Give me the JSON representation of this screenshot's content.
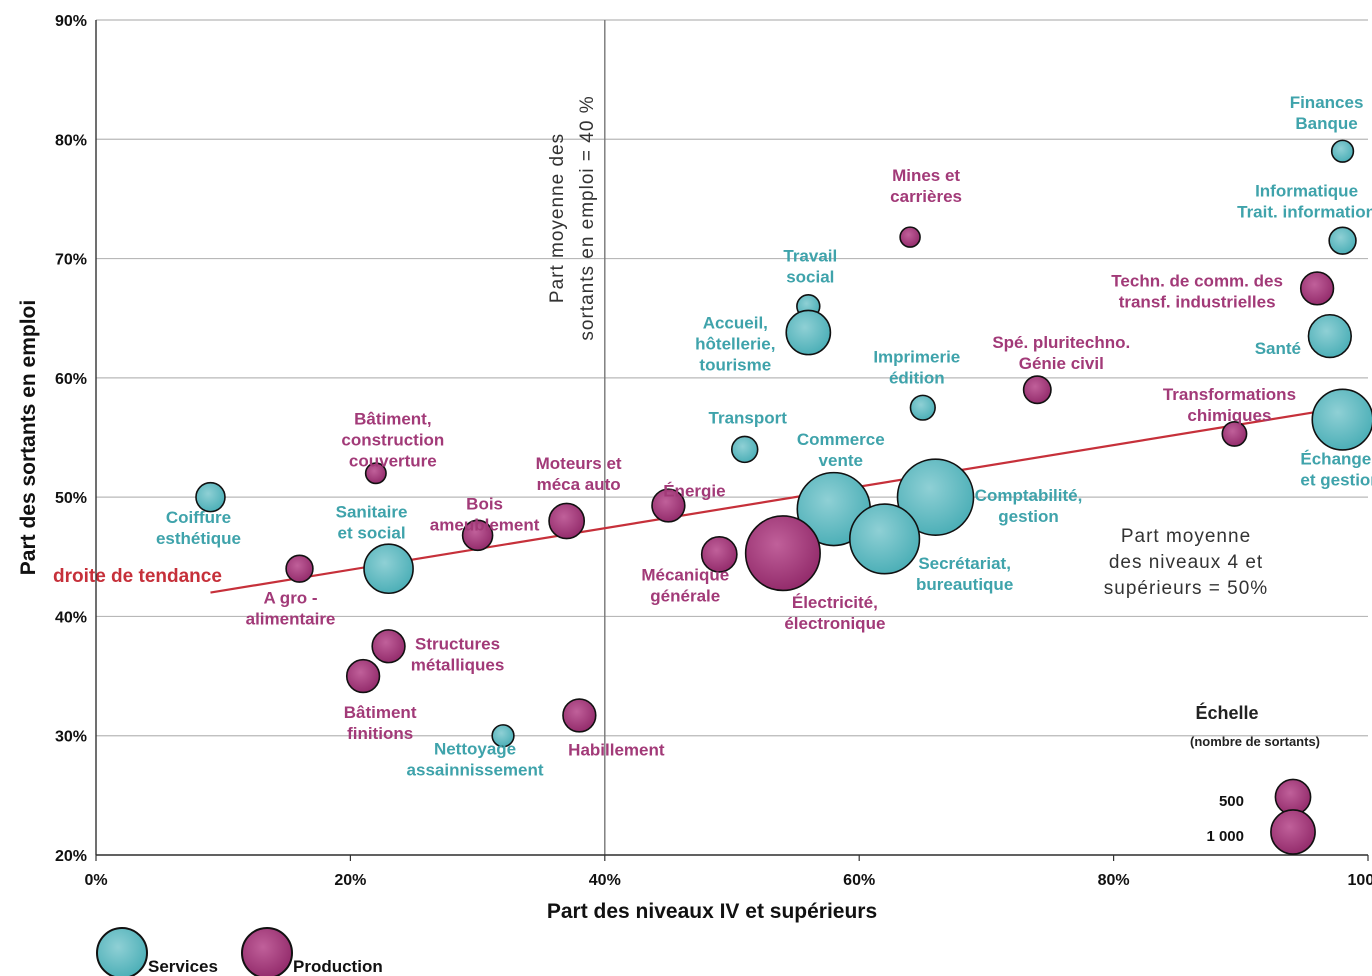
{
  "colors": {
    "services": "#4fb3ba",
    "production": "#9e2f72",
    "trend": "#c6303a",
    "grid": "#b8b8b8"
  },
  "chart_data": {
    "type": "scatter",
    "xlabel": "Part des niveaux IV et supérieurs",
    "ylabel": "Part des sortants en emploi",
    "xlim": [
      0,
      100
    ],
    "ylim": [
      20,
      90
    ],
    "x_ticks": [
      "0%",
      "20%",
      "40%",
      "60%",
      "80%",
      "100%"
    ],
    "y_ticks": [
      "20%",
      "30%",
      "40%",
      "50%",
      "60%",
      "70%",
      "80%",
      "90%"
    ],
    "grid": true,
    "ref_x": {
      "value": 40,
      "label": [
        "Part moyenne des",
        "sortants en emploi = 40 %"
      ]
    },
    "ref_y": {
      "value": 50,
      "label": [
        "Part moyenne",
        "des niveaux 4 et",
        "supérieurs = 50%"
      ]
    },
    "trend": {
      "label": "droite de tendance",
      "x0": 9,
      "y0": 42,
      "x1": 98,
      "y1": 57.5
    },
    "series": [
      {
        "name": "Services",
        "points": [
          {
            "label": [
              "Finances",
              "Banque"
            ],
            "x": 98,
            "y": 79,
            "size": 75
          },
          {
            "label": [
              "Informatique",
              "Trait. information"
            ],
            "x": 98,
            "y": 71.5,
            "size": 150
          },
          {
            "label": [
              "Santé"
            ],
            "x": 97,
            "y": 63.5,
            "size": 550
          },
          {
            "label": [
              "Échanges",
              "et gestion"
            ],
            "x": 98,
            "y": 56.5,
            "size": 1300
          },
          {
            "label": [
              "Travail",
              "social"
            ],
            "x": 56,
            "y": 66,
            "size": 90
          },
          {
            "label": [
              "Accueil,",
              "hôtellerie,",
              "tourisme"
            ],
            "x": 56,
            "y": 63.8,
            "size": 600
          },
          {
            "label": [
              "Imprimerie",
              "édition"
            ],
            "x": 65,
            "y": 57.5,
            "size": 115
          },
          {
            "label": [
              "Transport"
            ],
            "x": 51,
            "y": 54,
            "size": 135
          },
          {
            "label": [
              "Commerce",
              "vente"
            ],
            "x": 58,
            "y": 49,
            "size": 2000
          },
          {
            "label": [
              "Comptabilité,",
              "gestion"
            ],
            "x": 66,
            "y": 50,
            "size": 2200
          },
          {
            "label": [
              "Secrétariat,",
              "bureautique"
            ],
            "x": 62,
            "y": 46.5,
            "size": 1800
          },
          {
            "label": [
              "Coiffure",
              "esthétique"
            ],
            "x": 9,
            "y": 50,
            "size": 190
          },
          {
            "label": [
              "Sanitaire",
              "et social"
            ],
            "x": 23,
            "y": 44,
            "size": 780
          },
          {
            "label": [
              "Nettoyage",
              "assainnissement"
            ],
            "x": 32,
            "y": 30,
            "size": 75
          }
        ]
      },
      {
        "name": "Production",
        "points": [
          {
            "label": [
              "Mines et",
              "carrières"
            ],
            "x": 64,
            "y": 71.8,
            "size": 55
          },
          {
            "label": [
              "Techn. de  comm. des",
              "transf. industrielles"
            ],
            "x": 96,
            "y": 67.5,
            "size": 270
          },
          {
            "label": [
              "Spé. pluritechno.",
              "Génie civil"
            ],
            "x": 74,
            "y": 59,
            "size": 160
          },
          {
            "label": [
              "Transformations",
              "chimiques"
            ],
            "x": 89.5,
            "y": 55.3,
            "size": 110
          },
          {
            "label": [
              "Bâtiment,",
              "construction",
              "couverture"
            ],
            "x": 22,
            "y": 52,
            "size": 60
          },
          {
            "label": [
              "Moteurs et",
              "méca auto"
            ],
            "x": 37,
            "y": 48,
            "size": 330
          },
          {
            "label": [
              "Énergie"
            ],
            "x": 45,
            "y": 49.3,
            "size": 270
          },
          {
            "label": [
              "Bois",
              "ameublement"
            ],
            "x": 30,
            "y": 46.8,
            "size": 210
          },
          {
            "label": [
              "Mécanique",
              "générale"
            ],
            "x": 49,
            "y": 45.2,
            "size": 330
          },
          {
            "label": [
              "Électricité,",
              "électronique"
            ],
            "x": 54,
            "y": 45.3,
            "size": 2100
          },
          {
            "label": [
              "A gro -",
              "alimentaire"
            ],
            "x": 16,
            "y": 44,
            "size": 150
          },
          {
            "label": [
              "Structures",
              "métalliques"
            ],
            "x": 23,
            "y": 37.5,
            "size": 270
          },
          {
            "label": [
              "Bâtiment",
              "finitions"
            ],
            "x": 21,
            "y": 35,
            "size": 270
          },
          {
            "label": [
              "Habillement"
            ],
            "x": 38,
            "y": 31.7,
            "size": 270
          }
        ]
      }
    ],
    "scale": {
      "title": "Échelle",
      "subtitle": "(nombre de sortants)",
      "items": [
        {
          "label": "500",
          "size": 330
        },
        {
          "label": "1 000",
          "size": 600
        }
      ]
    },
    "legend": [
      "Services",
      "Production"
    ]
  }
}
